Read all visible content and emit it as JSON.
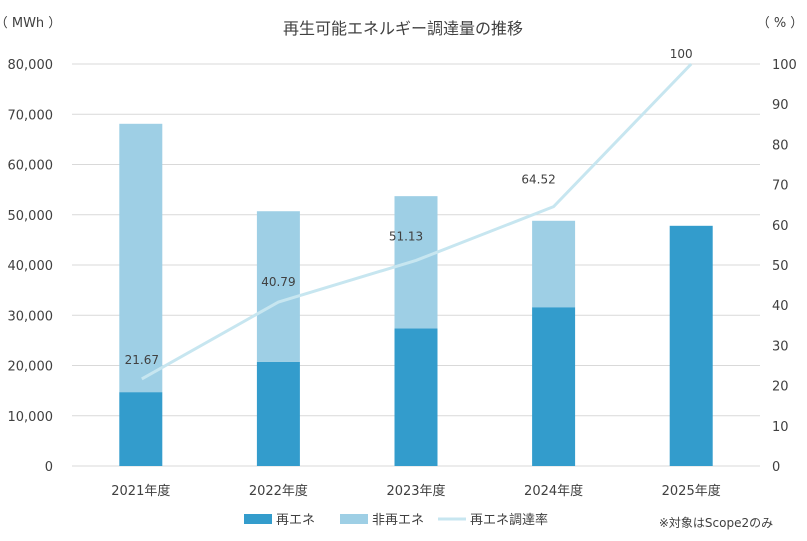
{
  "chart_data": {
    "type": "bar",
    "title": "再生可能エネルギー調達量の推移",
    "y_unit_left": "（ MWh ）",
    "y_unit_right": "（ % ）",
    "categories": [
      "2021年度",
      "2022年度",
      "2023年度",
      "2024年度",
      "2025年度"
    ],
    "ylim_left": [
      0,
      80000
    ],
    "ylim_right": [
      0,
      100
    ],
    "yticks_left": [
      "0",
      "10,000",
      "20,000",
      "30,000",
      "40,000",
      "50,000",
      "60,000",
      "70,000",
      "80,000"
    ],
    "yticks_right": [
      "0",
      "10",
      "20",
      "30",
      "40",
      "50",
      "60",
      "70",
      "80",
      "90",
      "100"
    ],
    "series": [
      {
        "name": "再エネ",
        "type": "bar",
        "stack": "main",
        "axis": "left",
        "color": "#339ccc",
        "values": [
          14700,
          20700,
          27400,
          31600,
          47800
        ]
      },
      {
        "name": "非再エネ",
        "type": "bar",
        "stack": "main",
        "axis": "left",
        "color": "#9ecfe5",
        "values": [
          53400,
          30000,
          26300,
          17200,
          0
        ]
      },
      {
        "name": "再エネ調達率",
        "type": "line",
        "axis": "right",
        "color": "#c7e6f0",
        "values": [
          21.67,
          40.79,
          51.13,
          64.52,
          100
        ],
        "labels": [
          "21.67",
          "40.79",
          "51.13",
          "64.52",
          "100"
        ]
      }
    ],
    "grid": true,
    "legend": "bottom",
    "note": "※対象はScope2のみ"
  }
}
